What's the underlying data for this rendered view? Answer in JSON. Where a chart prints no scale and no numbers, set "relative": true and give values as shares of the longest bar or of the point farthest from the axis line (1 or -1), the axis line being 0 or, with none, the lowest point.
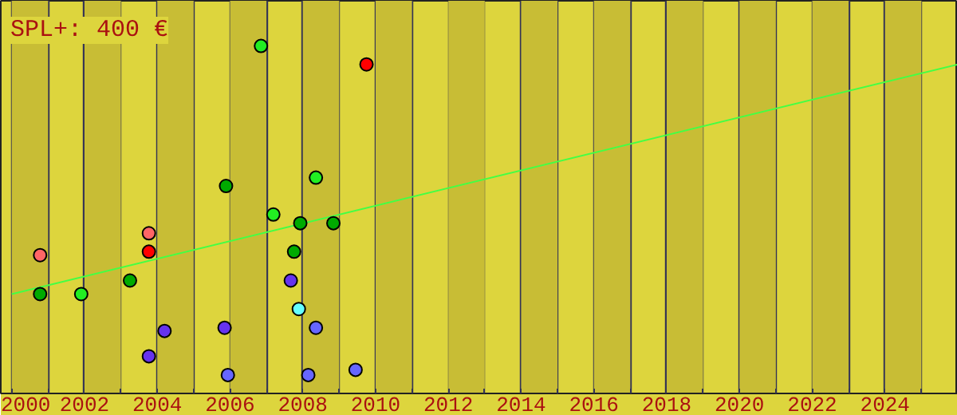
{
  "chart_data": {
    "type": "scatter",
    "title": "SPL+: 400 €",
    "relative": true,
    "marker": "circle",
    "grid": "x",
    "tick_labels": "x",
    "xlim": [
      1999.7,
      2026
    ],
    "xticks": [
      2000,
      {
        "value": 2001,
        "label": null
      },
      2002,
      {
        "value": 2003,
        "label": null
      },
      2004,
      {
        "value": 2005,
        "label": null
      },
      2006,
      {
        "value": 2007,
        "label": null
      },
      2008,
      {
        "value": 2009,
        "label": null
      },
      2010,
      {
        "value": 2011,
        "label": null
      },
      2012,
      {
        "value": 2013,
        "label": null
      },
      2014,
      {
        "value": 2015,
        "label": null
      },
      2016,
      {
        "value": 2017,
        "label": null
      },
      2018,
      {
        "value": 2019,
        "label": null
      },
      2020,
      {
        "value": 2021,
        "label": null
      },
      2022,
      {
        "value": 2023,
        "label": null
      },
      2024,
      {
        "value": 2025,
        "label": null
      }
    ],
    "bands": [
      {
        "axis": "x",
        "from": 2000,
        "to": 2001,
        "color": "#c8bd35"
      },
      {
        "axis": "x",
        "from": 2002,
        "to": 2003,
        "color": "#c8bd35"
      },
      {
        "axis": "x",
        "from": 2004,
        "to": 2005,
        "color": "#c8bd35"
      },
      {
        "axis": "x",
        "from": 2006,
        "to": 2007,
        "color": "#c8bd35"
      },
      {
        "axis": "x",
        "from": 2008,
        "to": 2009,
        "color": "#c8bd35"
      },
      {
        "axis": "x",
        "from": 2010,
        "to": 2011,
        "color": "#c8bd35"
      },
      {
        "axis": "x",
        "from": 2012,
        "to": 2013,
        "color": "#c8bd35"
      },
      {
        "axis": "x",
        "from": 2014,
        "to": 2015,
        "color": "#c8bd35"
      },
      {
        "axis": "x",
        "from": 2016,
        "to": 2017,
        "color": "#c8bd35"
      },
      {
        "axis": "x",
        "from": 2018,
        "to": 2019,
        "color": "#c8bd35"
      },
      {
        "axis": "x",
        "from": 2020,
        "to": 2021,
        "color": "#c8bd35"
      },
      {
        "axis": "x",
        "from": 2022,
        "to": 2023,
        "color": "#c8bd35"
      },
      {
        "axis": "x",
        "from": 2024,
        "to": 2025,
        "color": "#c8bd35"
      }
    ],
    "series": [
      {
        "type": "line",
        "marker": "none",
        "color": "#44ff44",
        "x": [
          2000,
          2026
        ],
        "values": [
          0.286,
          0.947
        ]
      },
      {
        "color": "#22ee22",
        "x": [
          2006.85,
          2001.91,
          2007.19,
          2008.36
        ],
        "values": [
          1,
          0.286,
          0.515,
          0.621
        ]
      },
      {
        "color": "#ff0000",
        "x": [
          2009.75,
          2003.77
        ],
        "values": [
          0.947,
          0.408
        ]
      },
      {
        "color": "#ff6666",
        "x": [
          2000.78,
          2003.77
        ],
        "values": [
          0.398,
          0.461
        ]
      },
      {
        "color": "#00aa00",
        "x": [
          2005.89,
          2000.78,
          2003.25,
          2007.93,
          2007.76,
          2008.84
        ],
        "values": [
          0.597,
          0.286,
          0.325,
          0.49,
          0.408,
          0.49
        ]
      },
      {
        "color": "#6633ee",
        "x": [
          2004.2,
          2003.77,
          2005.85,
          2007.67
        ],
        "values": [
          0.18,
          0.107,
          0.189,
          0.325
        ]
      },
      {
        "color": "#6666ff",
        "x": [
          2005.94,
          2008.15,
          2008.36,
          2009.45
        ],
        "values": [
          0.053,
          0.053,
          0.189,
          0.068
        ]
      },
      {
        "color": "#66ffff",
        "x": [
          2007.89
        ],
        "values": [
          0.243
        ]
      }
    ]
  }
}
